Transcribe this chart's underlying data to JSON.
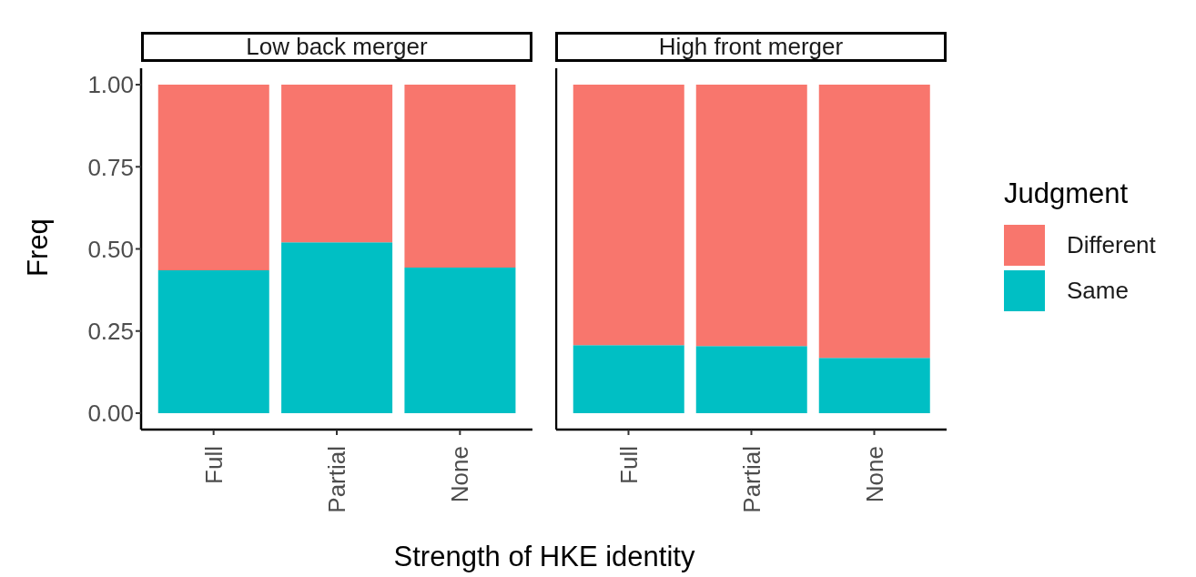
{
  "chart_data": [
    {
      "type": "bar",
      "title": "Low back merger",
      "categories": [
        "Full",
        "Partial",
        "None"
      ],
      "stacked": true,
      "legend": "right",
      "legend_title": "Judgment",
      "ylabel": "Freq",
      "xlabel": "Strength of HKE identity",
      "ylim": [
        -0.05,
        1.05
      ],
      "yticks": [
        {
          "value": 0,
          "label": "0.00"
        },
        {
          "value": 0.25,
          "label": "0.25"
        },
        {
          "value": 0.5,
          "label": "0.50"
        },
        {
          "value": 0.75,
          "label": "0.75"
        },
        {
          "value": 1,
          "label": "1.00"
        }
      ],
      "series": [
        {
          "name": "Same",
          "color": "#00bfc4",
          "values": [
            0.435,
            0.52,
            0.443
          ]
        },
        {
          "name": "Different",
          "color": "#f8766d",
          "values": [
            0.565,
            0.48,
            0.557
          ]
        }
      ]
    },
    {
      "type": "bar",
      "title": "High front merger",
      "categories": [
        "Full",
        "Partial",
        "None"
      ],
      "stacked": true,
      "ylim": [
        -0.05,
        1.05
      ],
      "tick_labels": "x",
      "series": [
        {
          "color": "#00bfc4",
          "values": [
            0.207,
            0.204,
            0.168
          ]
        },
        {
          "color": "#f8766d",
          "values": [
            0.793,
            0.796,
            0.832
          ]
        }
      ]
    }
  ]
}
